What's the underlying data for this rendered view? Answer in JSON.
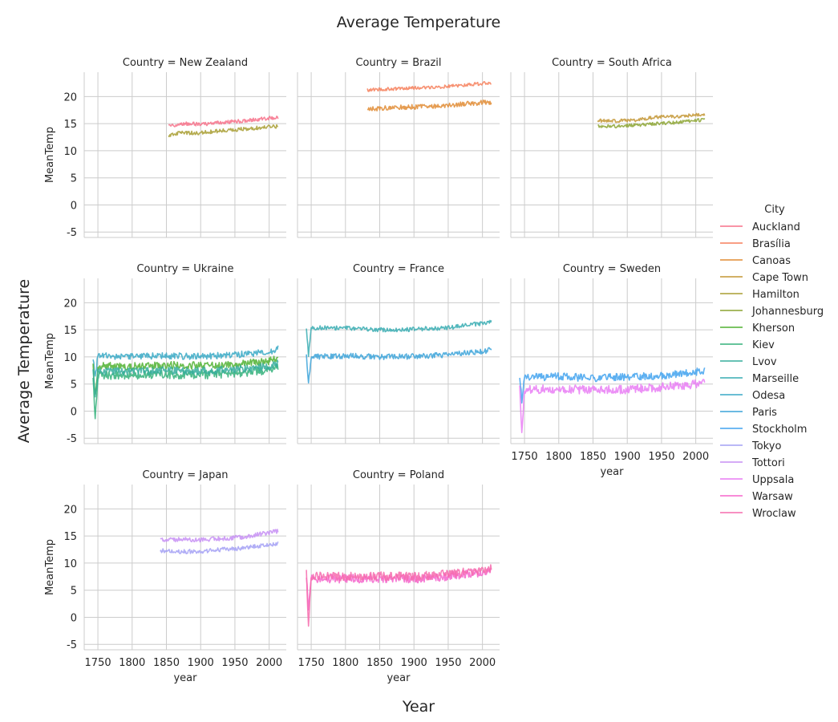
{
  "chart_data": {
    "type": "line",
    "title": "Average Temperature",
    "xlabel": "Year",
    "ylabel": "Average Temperature",
    "facet_xlabel": "year",
    "facet_ylabel": "MeanTemp",
    "facet_prefix": "Country = ",
    "xlim": [
      1730,
      2025
    ],
    "ylim": [
      -6,
      24.5
    ],
    "xticks": [
      1750,
      1800,
      1850,
      1900,
      1950,
      2000
    ],
    "yticks": [
      -5,
      0,
      5,
      10,
      15,
      20
    ],
    "grid": true,
    "legend": {
      "title": "City",
      "placement": "right"
    },
    "cities": [
      {
        "name": "Auckland",
        "color": "#f77189"
      },
      {
        "name": "Brasília",
        "color": "#f67f5b"
      },
      {
        "name": "Canoas",
        "color": "#e18b32"
      },
      {
        "name": "Cape Town",
        "color": "#c39532"
      },
      {
        "name": "Hamilton",
        "color": "#a89e31"
      },
      {
        "name": "Johannesburg",
        "color": "#8ca431"
      },
      {
        "name": "Kherson",
        "color": "#50b131"
      },
      {
        "name": "Kiev",
        "color": "#33b07a"
      },
      {
        "name": "Lvov",
        "color": "#35ad9c"
      },
      {
        "name": "Marseille",
        "color": "#36abb2"
      },
      {
        "name": "Odesa",
        "color": "#38a9c5"
      },
      {
        "name": "Paris",
        "color": "#3ba3d9"
      },
      {
        "name": "Stockholm",
        "color": "#41a2ef"
      },
      {
        "name": "Tokyo",
        "color": "#a3a0f4"
      },
      {
        "name": "Tottori",
        "color": "#c78ff4"
      },
      {
        "name": "Uppsala",
        "color": "#e97cf4"
      },
      {
        "name": "Warsaw",
        "color": "#f565cc"
      },
      {
        "name": "Wroclaw",
        "color": "#f66bad"
      }
    ],
    "facets": [
      {
        "country": "New Zealand",
        "series": [
          {
            "city": "Auckland",
            "x": [
              1853,
              1870,
              1900,
              1930,
              1960,
              1990,
              2013
            ],
            "y": [
              14.5,
              15.0,
              14.9,
              15.2,
              15.5,
              15.9,
              16.1
            ],
            "noise": 0.35
          },
          {
            "city": "Hamilton",
            "x": [
              1853,
              1870,
              1900,
              1930,
              1960,
              1990,
              2013
            ],
            "y": [
              12.8,
              13.3,
              13.3,
              13.7,
              14.0,
              14.3,
              14.5
            ],
            "noise": 0.35
          }
        ]
      },
      {
        "country": "Brazil",
        "series": [
          {
            "city": "Brasília",
            "x": [
              1832,
              1860,
              1900,
              1940,
              1980,
              2013
            ],
            "y": [
              21.2,
              21.4,
              21.6,
              21.8,
              22.2,
              22.6
            ],
            "noise": 0.3
          },
          {
            "city": "Canoas",
            "x": [
              1832,
              1860,
              1900,
              1940,
              1980,
              2013
            ],
            "y": [
              17.6,
              17.9,
              18.1,
              18.3,
              18.7,
              19.0
            ],
            "noise": 0.45
          }
        ]
      },
      {
        "country": "South Africa",
        "series": [
          {
            "city": "Cape Town",
            "x": [
              1857,
              1880,
              1910,
              1940,
              1970,
              2000,
              2013
            ],
            "y": [
              15.6,
              15.5,
              15.6,
              16.2,
              16.3,
              16.6,
              16.7
            ],
            "noise": 0.3
          },
          {
            "city": "Johannesburg",
            "x": [
              1857,
              1880,
              1910,
              1940,
              1970,
              2000,
              2013
            ],
            "y": [
              14.6,
              14.5,
              14.7,
              15.0,
              15.2,
              15.6,
              15.7
            ],
            "noise": 0.3
          }
        ]
      },
      {
        "country": "Ukraine",
        "series": [
          {
            "city": "Odesa",
            "x": [
              1743,
              1746,
              1750,
              1800,
              1850,
              1900,
              1950,
              2000,
              2013
            ],
            "y": [
              10.0,
              6.0,
              10.2,
              10.1,
              10.2,
              10.1,
              10.4,
              10.9,
              11.5
            ],
            "noise": 0.6
          },
          {
            "city": "Kherson",
            "x": [
              1743,
              1746,
              1750,
              1800,
              1850,
              1900,
              1950,
              2000,
              2013
            ],
            "y": [
              8.5,
              3.0,
              8.4,
              8.3,
              8.5,
              8.4,
              8.7,
              9.2,
              9.8
            ],
            "noise": 0.7
          },
          {
            "city": "Kiev",
            "x": [
              1743,
              1746,
              1750,
              1800,
              1850,
              1900,
              1950,
              2000,
              2013
            ],
            "y": [
              6.5,
              -1.0,
              6.6,
              6.7,
              6.8,
              6.7,
              7.0,
              7.6,
              8.3
            ],
            "noise": 0.8
          },
          {
            "city": "Lvov",
            "x": [
              1743,
              1746,
              1750,
              1800,
              1850,
              1900,
              1950,
              2000,
              2013
            ],
            "y": [
              7.2,
              2.0,
              7.3,
              7.3,
              7.5,
              7.4,
              7.7,
              8.2,
              8.8
            ],
            "noise": 0.7
          }
        ]
      },
      {
        "country": "France",
        "series": [
          {
            "city": "Marseille",
            "x": [
              1743,
              1746,
              1750,
              1800,
              1850,
              1900,
              1950,
              2000,
              2013
            ],
            "y": [
              15.5,
              10.5,
              15.4,
              15.3,
              15.0,
              15.1,
              15.4,
              16.2,
              16.4
            ],
            "noise": 0.4
          },
          {
            "city": "Paris",
            "x": [
              1743,
              1746,
              1750,
              1800,
              1850,
              1900,
              1950,
              2000,
              2013
            ],
            "y": [
              10.2,
              5.0,
              10.0,
              10.2,
              10.0,
              10.1,
              10.4,
              11.0,
              11.3
            ],
            "noise": 0.5
          }
        ]
      },
      {
        "country": "Sweden",
        "series": [
          {
            "city": "Stockholm",
            "x": [
              1743,
              1746,
              1750,
              1800,
              1850,
              1900,
              1950,
              2000,
              2013
            ],
            "y": [
              6.5,
              2.0,
              6.2,
              6.4,
              6.1,
              6.3,
              6.6,
              7.2,
              7.5
            ],
            "noise": 0.7
          },
          {
            "city": "Uppsala",
            "x": [
              1743,
              1746,
              1750,
              1800,
              1850,
              1900,
              1950,
              2000,
              2013
            ],
            "y": [
              4.2,
              -4.5,
              4.0,
              4.1,
              3.9,
              4.0,
              4.4,
              5.0,
              5.4
            ],
            "noise": 0.8
          }
        ]
      },
      {
        "country": "Japan",
        "series": [
          {
            "city": "Tokyo",
            "x": [
              1841,
              1870,
              1900,
              1930,
              1960,
              1990,
              2013
            ],
            "y": [
              12.3,
              12.1,
              12.2,
              12.5,
              12.7,
              13.2,
              13.7
            ],
            "noise": 0.4
          },
          {
            "city": "Tottori",
            "x": [
              1841,
              1870,
              1900,
              1930,
              1960,
              1990,
              2013
            ],
            "y": [
              14.2,
              14.4,
              14.3,
              14.5,
              14.8,
              15.4,
              15.9
            ],
            "noise": 0.4
          }
        ]
      },
      {
        "country": "Poland",
        "series": [
          {
            "city": "Warsaw",
            "x": [
              1743,
              1746,
              1750,
              1800,
              1850,
              1900,
              1950,
              2000,
              2013
            ],
            "y": [
              7.5,
              1.5,
              7.2,
              7.1,
              7.2,
              7.0,
              7.6,
              8.2,
              8.6
            ],
            "noise": 0.8
          },
          {
            "city": "Wroclaw",
            "x": [
              1743,
              1746,
              1750,
              1800,
              1850,
              1900,
              1950,
              2000,
              2013
            ],
            "y": [
              8.0,
              -1.0,
              7.6,
              7.5,
              7.6,
              7.5,
              8.0,
              8.6,
              9.1
            ],
            "noise": 0.8
          }
        ]
      }
    ]
  }
}
